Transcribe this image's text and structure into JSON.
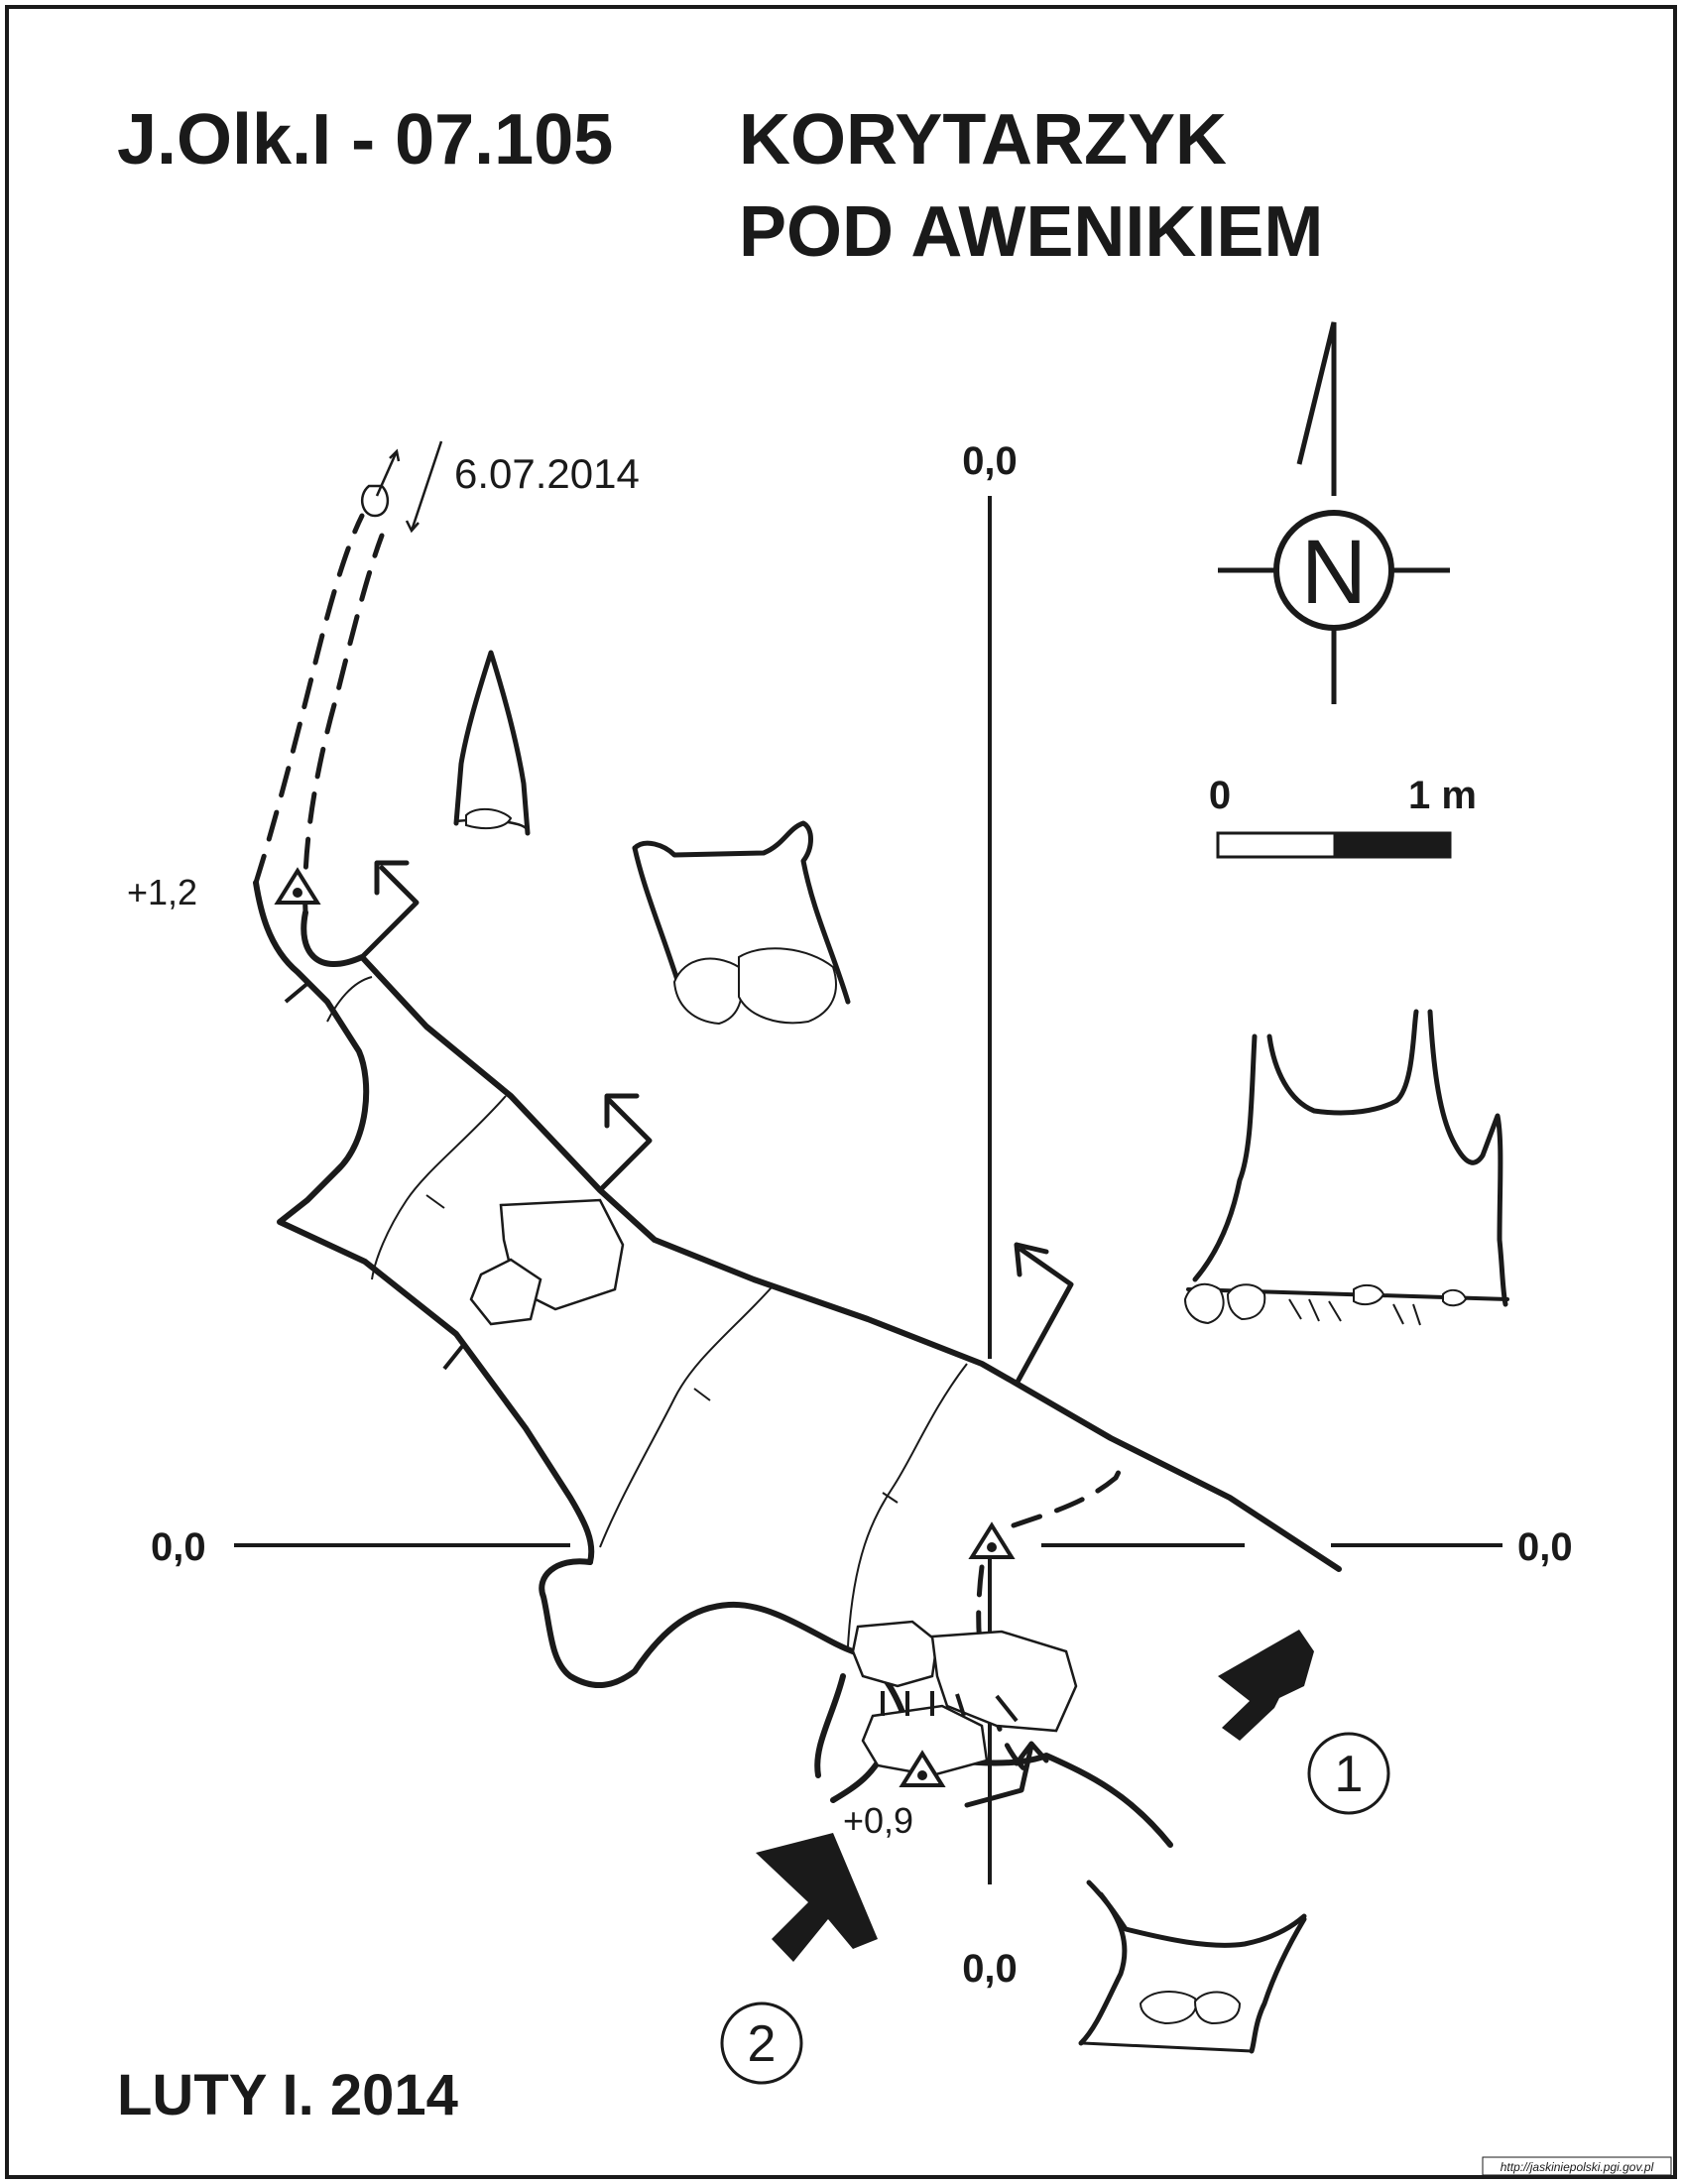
{
  "title": {
    "code": "J.Olk.I - 07.105",
    "name_line1": "KORYTARZYK",
    "name_line2": "POD AWENIKIEM"
  },
  "survey_date_note": "6.07.2014",
  "author": "LUTY I. 2014",
  "source_url": "http://jaskiniepolski.pgi.gov.pl",
  "north_label": "N",
  "scale": {
    "start": "0",
    "end": "1 m"
  },
  "section_level_labels": {
    "top": "0,0",
    "left": "0,0",
    "right": "0,0",
    "bottom": "0,0"
  },
  "height_marks": {
    "upper": "+1,2",
    "lower": "+0,9"
  },
  "entrances": {
    "one": "1",
    "two": "2"
  },
  "colors": {
    "ink": "#1a1a1a",
    "paper": "#ffffff"
  }
}
